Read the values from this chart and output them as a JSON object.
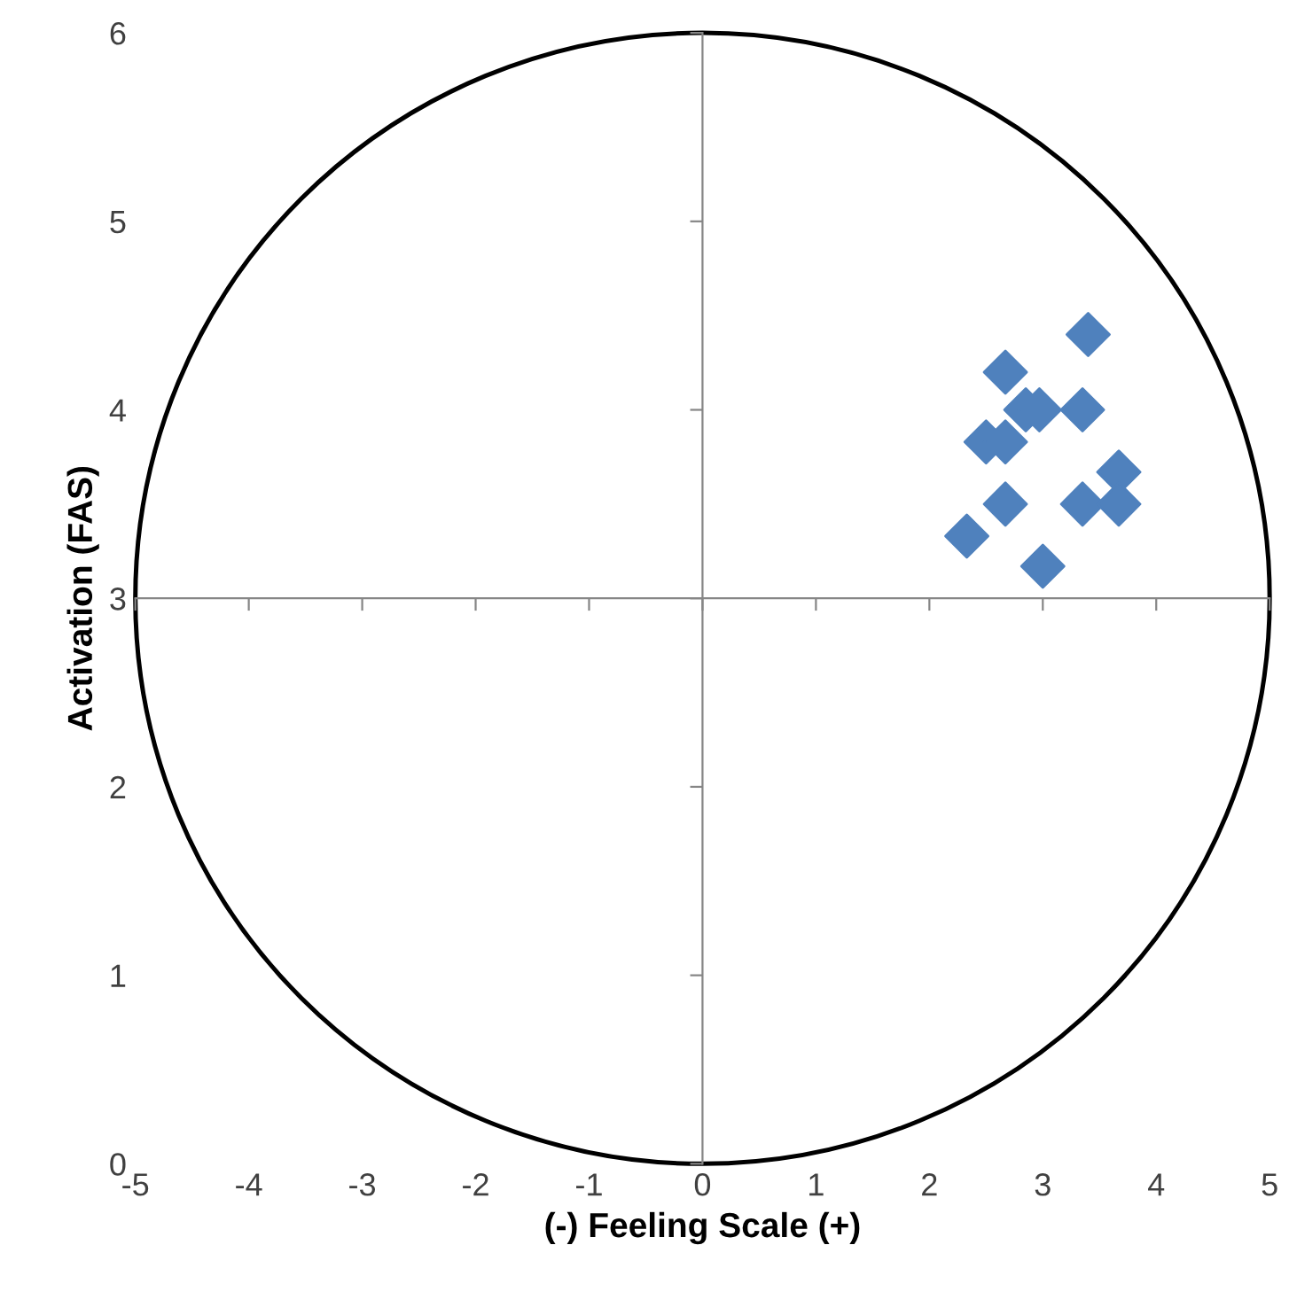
{
  "chart_data": {
    "type": "scatter",
    "xlabel": "(-) Feeling Scale (+)",
    "ylabel": "Activation (FAS)",
    "x": [
      3.4,
      2.67,
      2.85,
      2.97,
      3.35,
      2.5,
      2.67,
      3.67,
      2.67,
      3.35,
      3.67,
      2.33,
      3.0
    ],
    "series": [
      {
        "color": "#4f81bd",
        "values": [
          4.4,
          4.2,
          4.0,
          4.0,
          4.0,
          3.83,
          3.83,
          3.67,
          3.5,
          3.5,
          3.5,
          3.33,
          3.17
        ]
      }
    ],
    "marker": "diamond",
    "xlim": [
      -5,
      5
    ],
    "ylim": [
      0,
      6
    ],
    "xticks": [
      -5,
      -4,
      -3,
      -2,
      -1,
      0,
      1,
      2,
      3,
      4,
      5
    ],
    "yticks": [
      0,
      1,
      2,
      3,
      4,
      5,
      6
    ],
    "ref_lines": [
      {
        "axis": "x",
        "value": 0
      },
      {
        "axis": "y",
        "value": 3
      }
    ],
    "grid": false,
    "legend": false
  }
}
